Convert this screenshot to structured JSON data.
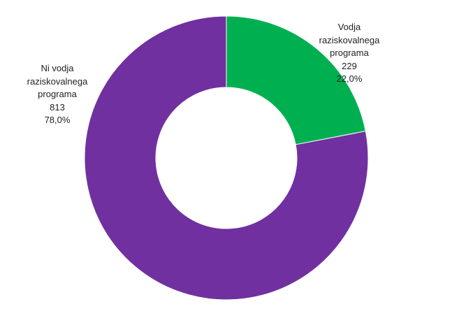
{
  "chart_data": {
    "type": "donut",
    "categories": [
      "Vodja raziskovalnega programa",
      "Ni vodja raziskovalnega programa"
    ],
    "values": [
      229,
      813
    ],
    "percentages": [
      22.0,
      78.0
    ],
    "percentage_labels": [
      "22,0%",
      "78,0%"
    ],
    "colors": [
      "#00b050",
      "#7030a0"
    ]
  }
}
